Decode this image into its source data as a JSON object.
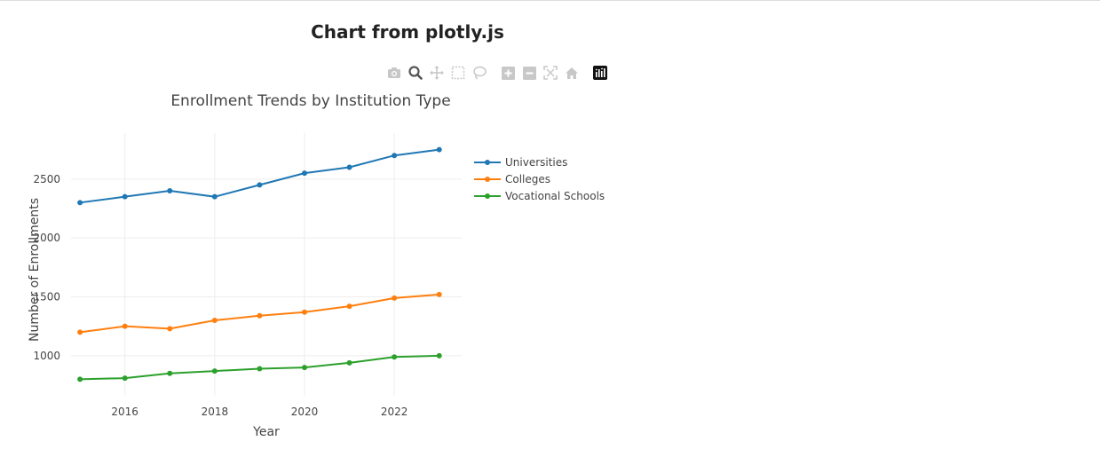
{
  "page": {
    "title": "Chart from plotly.js"
  },
  "modebar": {
    "buttons": [
      {
        "icon": "camera-icon",
        "label": "Download plot as a png"
      },
      {
        "icon": "zoom-icon",
        "label": "Zoom"
      },
      {
        "icon": "pan-icon",
        "label": "Pan"
      },
      {
        "icon": "box-select-icon",
        "label": "Box Select"
      },
      {
        "icon": "lasso-select-icon",
        "label": "Lasso Select"
      },
      {
        "icon": "zoom-in-icon",
        "label": "Zoom in"
      },
      {
        "icon": "zoom-out-icon",
        "label": "Zoom out"
      },
      {
        "icon": "autoscale-icon",
        "label": "Autoscale"
      },
      {
        "icon": "reset-axes-icon",
        "label": "Reset axes"
      },
      {
        "icon": "plotly-logo-icon",
        "label": "Produced with Plotly"
      }
    ],
    "icon_color": "#c8c8c8",
    "active_color": "#555555"
  },
  "chart_data": {
    "type": "line",
    "title": "Enrollment Trends by Institution Type",
    "xlabel": "Year",
    "ylabel": "Number of Enrollments",
    "x": [
      2015,
      2016,
      2017,
      2018,
      2019,
      2020,
      2021,
      2022,
      2023
    ],
    "x_ticks": [
      "2016",
      "2018",
      "2020",
      "2022"
    ],
    "x_tick_values": [
      2016,
      2018,
      2020,
      2022
    ],
    "xlim": [
      2014.8,
      2023.5
    ],
    "y_ticks": [
      "1000",
      "1500",
      "2000",
      "2500"
    ],
    "y_tick_values": [
      1000,
      1500,
      2000,
      2500
    ],
    "ylim": [
      660,
      2890
    ],
    "grid": true,
    "legend_position": "right-top",
    "series": [
      {
        "name": "Universities",
        "color": "#1f77b4",
        "values": [
          2300,
          2350,
          2400,
          2350,
          2450,
          2550,
          2600,
          2700,
          2750
        ]
      },
      {
        "name": "Colleges",
        "color": "#ff7f0e",
        "values": [
          1200,
          1250,
          1230,
          1300,
          1340,
          1370,
          1420,
          1490,
          1520
        ]
      },
      {
        "name": "Vocational Schools",
        "color": "#2ca02c",
        "values": [
          800,
          810,
          850,
          870,
          890,
          900,
          940,
          990,
          1000
        ]
      }
    ]
  }
}
